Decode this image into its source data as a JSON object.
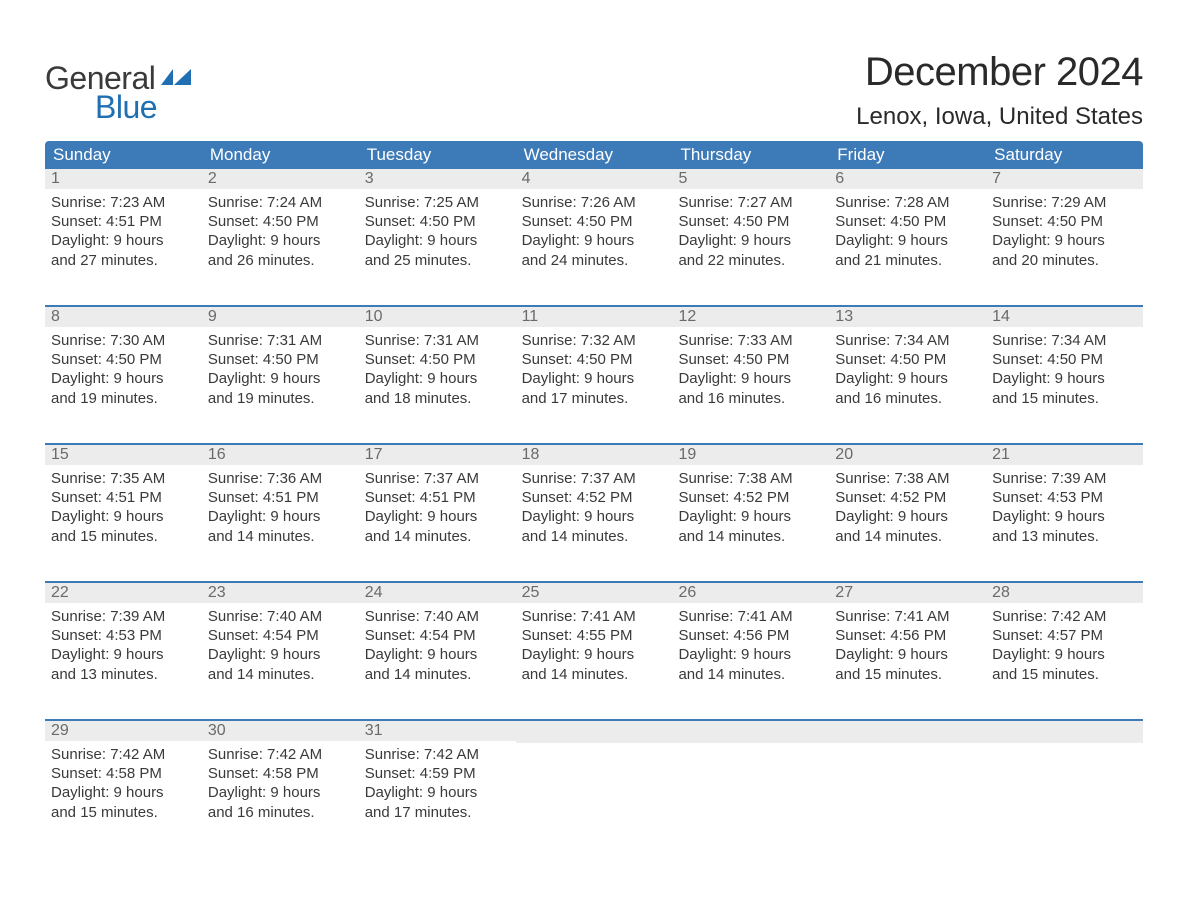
{
  "brand": {
    "word1": "General",
    "word2": "Blue",
    "accent_color": "#1f6fb2",
    "text_color": "#3a3a3a"
  },
  "title": "December 2024",
  "location": "Lenox, Iowa, United States",
  "colors": {
    "header_bg": "#3d7ab8",
    "header_text": "#ffffff",
    "daynum_bg": "#ececec",
    "daynum_text": "#6a6a6a",
    "body_text": "#3a3a3a",
    "week_border": "#3d7ab8",
    "page_bg": "#ffffff"
  },
  "typography": {
    "title_fontsize": 40,
    "location_fontsize": 24,
    "dayhead_fontsize": 17,
    "daynum_fontsize": 16,
    "body_fontsize": 15,
    "logo_fontsize": 32,
    "font_family": "Arial"
  },
  "day_headers": [
    "Sunday",
    "Monday",
    "Tuesday",
    "Wednesday",
    "Thursday",
    "Friday",
    "Saturday"
  ],
  "weeks": [
    [
      {
        "num": "1",
        "sunrise": "Sunrise: 7:23 AM",
        "sunset": "Sunset: 4:51 PM",
        "dl1": "Daylight: 9 hours",
        "dl2": "and 27 minutes."
      },
      {
        "num": "2",
        "sunrise": "Sunrise: 7:24 AM",
        "sunset": "Sunset: 4:50 PM",
        "dl1": "Daylight: 9 hours",
        "dl2": "and 26 minutes."
      },
      {
        "num": "3",
        "sunrise": "Sunrise: 7:25 AM",
        "sunset": "Sunset: 4:50 PM",
        "dl1": "Daylight: 9 hours",
        "dl2": "and 25 minutes."
      },
      {
        "num": "4",
        "sunrise": "Sunrise: 7:26 AM",
        "sunset": "Sunset: 4:50 PM",
        "dl1": "Daylight: 9 hours",
        "dl2": "and 24 minutes."
      },
      {
        "num": "5",
        "sunrise": "Sunrise: 7:27 AM",
        "sunset": "Sunset: 4:50 PM",
        "dl1": "Daylight: 9 hours",
        "dl2": "and 22 minutes."
      },
      {
        "num": "6",
        "sunrise": "Sunrise: 7:28 AM",
        "sunset": "Sunset: 4:50 PM",
        "dl1": "Daylight: 9 hours",
        "dl2": "and 21 minutes."
      },
      {
        "num": "7",
        "sunrise": "Sunrise: 7:29 AM",
        "sunset": "Sunset: 4:50 PM",
        "dl1": "Daylight: 9 hours",
        "dl2": "and 20 minutes."
      }
    ],
    [
      {
        "num": "8",
        "sunrise": "Sunrise: 7:30 AM",
        "sunset": "Sunset: 4:50 PM",
        "dl1": "Daylight: 9 hours",
        "dl2": "and 19 minutes."
      },
      {
        "num": "9",
        "sunrise": "Sunrise: 7:31 AM",
        "sunset": "Sunset: 4:50 PM",
        "dl1": "Daylight: 9 hours",
        "dl2": "and 19 minutes."
      },
      {
        "num": "10",
        "sunrise": "Sunrise: 7:31 AM",
        "sunset": "Sunset: 4:50 PM",
        "dl1": "Daylight: 9 hours",
        "dl2": "and 18 minutes."
      },
      {
        "num": "11",
        "sunrise": "Sunrise: 7:32 AM",
        "sunset": "Sunset: 4:50 PM",
        "dl1": "Daylight: 9 hours",
        "dl2": "and 17 minutes."
      },
      {
        "num": "12",
        "sunrise": "Sunrise: 7:33 AM",
        "sunset": "Sunset: 4:50 PM",
        "dl1": "Daylight: 9 hours",
        "dl2": "and 16 minutes."
      },
      {
        "num": "13",
        "sunrise": "Sunrise: 7:34 AM",
        "sunset": "Sunset: 4:50 PM",
        "dl1": "Daylight: 9 hours",
        "dl2": "and 16 minutes."
      },
      {
        "num": "14",
        "sunrise": "Sunrise: 7:34 AM",
        "sunset": "Sunset: 4:50 PM",
        "dl1": "Daylight: 9 hours",
        "dl2": "and 15 minutes."
      }
    ],
    [
      {
        "num": "15",
        "sunrise": "Sunrise: 7:35 AM",
        "sunset": "Sunset: 4:51 PM",
        "dl1": "Daylight: 9 hours",
        "dl2": "and 15 minutes."
      },
      {
        "num": "16",
        "sunrise": "Sunrise: 7:36 AM",
        "sunset": "Sunset: 4:51 PM",
        "dl1": "Daylight: 9 hours",
        "dl2": "and 14 minutes."
      },
      {
        "num": "17",
        "sunrise": "Sunrise: 7:37 AM",
        "sunset": "Sunset: 4:51 PM",
        "dl1": "Daylight: 9 hours",
        "dl2": "and 14 minutes."
      },
      {
        "num": "18",
        "sunrise": "Sunrise: 7:37 AM",
        "sunset": "Sunset: 4:52 PM",
        "dl1": "Daylight: 9 hours",
        "dl2": "and 14 minutes."
      },
      {
        "num": "19",
        "sunrise": "Sunrise: 7:38 AM",
        "sunset": "Sunset: 4:52 PM",
        "dl1": "Daylight: 9 hours",
        "dl2": "and 14 minutes."
      },
      {
        "num": "20",
        "sunrise": "Sunrise: 7:38 AM",
        "sunset": "Sunset: 4:52 PM",
        "dl1": "Daylight: 9 hours",
        "dl2": "and 14 minutes."
      },
      {
        "num": "21",
        "sunrise": "Sunrise: 7:39 AM",
        "sunset": "Sunset: 4:53 PM",
        "dl1": "Daylight: 9 hours",
        "dl2": "and 13 minutes."
      }
    ],
    [
      {
        "num": "22",
        "sunrise": "Sunrise: 7:39 AM",
        "sunset": "Sunset: 4:53 PM",
        "dl1": "Daylight: 9 hours",
        "dl2": "and 13 minutes."
      },
      {
        "num": "23",
        "sunrise": "Sunrise: 7:40 AM",
        "sunset": "Sunset: 4:54 PM",
        "dl1": "Daylight: 9 hours",
        "dl2": "and 14 minutes."
      },
      {
        "num": "24",
        "sunrise": "Sunrise: 7:40 AM",
        "sunset": "Sunset: 4:54 PM",
        "dl1": "Daylight: 9 hours",
        "dl2": "and 14 minutes."
      },
      {
        "num": "25",
        "sunrise": "Sunrise: 7:41 AM",
        "sunset": "Sunset: 4:55 PM",
        "dl1": "Daylight: 9 hours",
        "dl2": "and 14 minutes."
      },
      {
        "num": "26",
        "sunrise": "Sunrise: 7:41 AM",
        "sunset": "Sunset: 4:56 PM",
        "dl1": "Daylight: 9 hours",
        "dl2": "and 14 minutes."
      },
      {
        "num": "27",
        "sunrise": "Sunrise: 7:41 AM",
        "sunset": "Sunset: 4:56 PM",
        "dl1": "Daylight: 9 hours",
        "dl2": "and 15 minutes."
      },
      {
        "num": "28",
        "sunrise": "Sunrise: 7:42 AM",
        "sunset": "Sunset: 4:57 PM",
        "dl1": "Daylight: 9 hours",
        "dl2": "and 15 minutes."
      }
    ],
    [
      {
        "num": "29",
        "sunrise": "Sunrise: 7:42 AM",
        "sunset": "Sunset: 4:58 PM",
        "dl1": "Daylight: 9 hours",
        "dl2": "and 15 minutes."
      },
      {
        "num": "30",
        "sunrise": "Sunrise: 7:42 AM",
        "sunset": "Sunset: 4:58 PM",
        "dl1": "Daylight: 9 hours",
        "dl2": "and 16 minutes."
      },
      {
        "num": "31",
        "sunrise": "Sunrise: 7:42 AM",
        "sunset": "Sunset: 4:59 PM",
        "dl1": "Daylight: 9 hours",
        "dl2": "and 17 minutes."
      },
      null,
      null,
      null,
      null
    ]
  ]
}
